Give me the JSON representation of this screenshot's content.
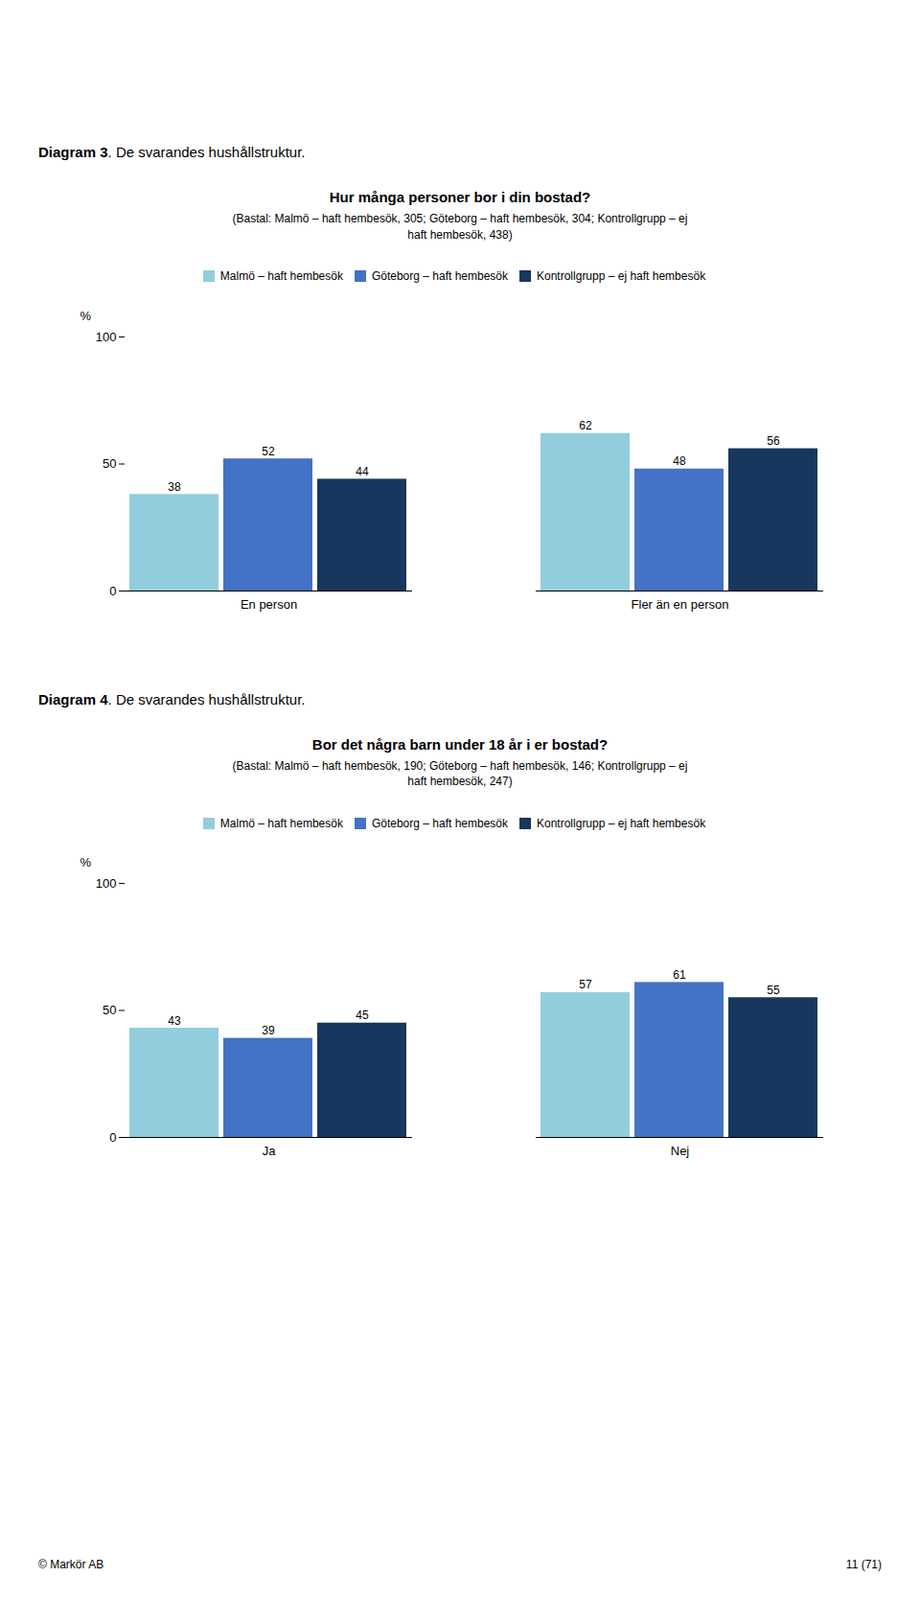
{
  "chart_data": [
    {
      "type": "bar",
      "annotations": [
        "Diagram 3. De svarandes hushållstruktur."
      ],
      "title": "Hur många personer bor i din bostad?",
      "subtitle": "(Bastal: Malmö – haft hembesök, 305; Göteborg – haft hembesök, 304; Kontrollgrupp – ej\nhaft hembesök, 438)",
      "categories": [
        "En person",
        "Fler än en person"
      ],
      "series": [
        {
          "name": "Malmö – haft hembesök",
          "color": "#92CDDC",
          "values": [
            38,
            62
          ]
        },
        {
          "name": "Göteborg – haft hembesök",
          "color": "#4472C4",
          "values": [
            52,
            48
          ]
        },
        {
          "name": "Kontrollgrupp – ej haft hembesök",
          "color": "#17375E",
          "values": [
            44,
            56
          ]
        }
      ],
      "ylabel": "%",
      "ylim": [
        0,
        100
      ],
      "yticks": [
        0,
        50,
        100
      ],
      "grid": false,
      "legend": "top",
      "data_labels": true
    },
    {
      "type": "bar",
      "annotations": [
        "Diagram 4. De svarandes hushållstruktur."
      ],
      "title": "Bor det några barn under 18 år i er bostad?",
      "subtitle": "(Bastal: Malmö – haft hembesök, 190; Göteborg – haft hembesök, 146; Kontrollgrupp – ej\nhaft hembesök, 247)",
      "categories": [
        "Ja",
        "Nej"
      ],
      "series": [
        {
          "name": "Malmö – haft hembesök",
          "color": "#92CDDC",
          "values": [
            43,
            57
          ]
        },
        {
          "name": "Göteborg – haft hembesök",
          "color": "#4472C4",
          "values": [
            39,
            61
          ]
        },
        {
          "name": "Kontrollgrupp – ej haft hembesök",
          "color": "#17375E",
          "values": [
            45,
            55
          ]
        }
      ],
      "ylabel": "%",
      "ylim": [
        0,
        100
      ],
      "yticks": [
        0,
        50,
        100
      ],
      "grid": false,
      "legend": "top",
      "data_labels": true
    }
  ],
  "annotations": [
    "© Markör AB",
    "11 (71)"
  ]
}
